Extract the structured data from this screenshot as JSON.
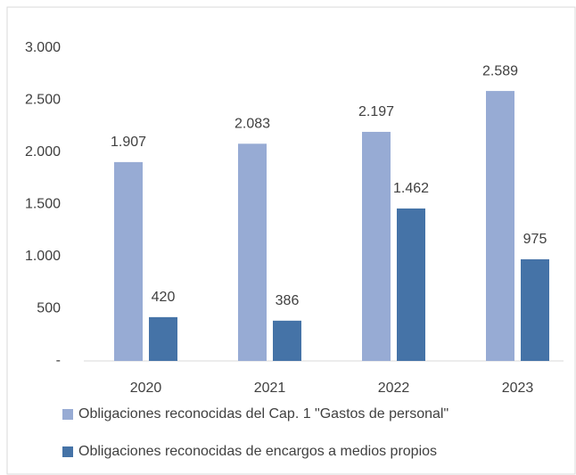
{
  "chart_data": {
    "type": "bar",
    "categories": [
      "2020",
      "2021",
      "2022",
      "2023"
    ],
    "series": [
      {
        "name": "Obligaciones reconocidas del Cap. 1 \"Gastos de personal\"",
        "color": "#97abd4",
        "values": [
          1907,
          2083,
          2197,
          2589
        ],
        "value_labels": [
          "1.907",
          "2.083",
          "2.197",
          "2.589"
        ]
      },
      {
        "name": "Obligaciones reconocidas de encargos a medios propios",
        "color": "#4573a7",
        "values": [
          420,
          386,
          1462,
          975
        ],
        "value_labels": [
          "420",
          "386",
          "1.462",
          "975"
        ]
      }
    ],
    "ylim": [
      0,
      3000
    ],
    "yticks": [
      {
        "value": 0,
        "label": "-"
      },
      500,
      {
        "value": 1000,
        "label": "1.000"
      },
      {
        "value": 1500,
        "label": "1.500"
      },
      {
        "value": 2000,
        "label": "2.000"
      },
      {
        "value": 2500,
        "label": "2.500"
      },
      {
        "value": 3000,
        "label": "3.000"
      }
    ],
    "grid": false
  }
}
